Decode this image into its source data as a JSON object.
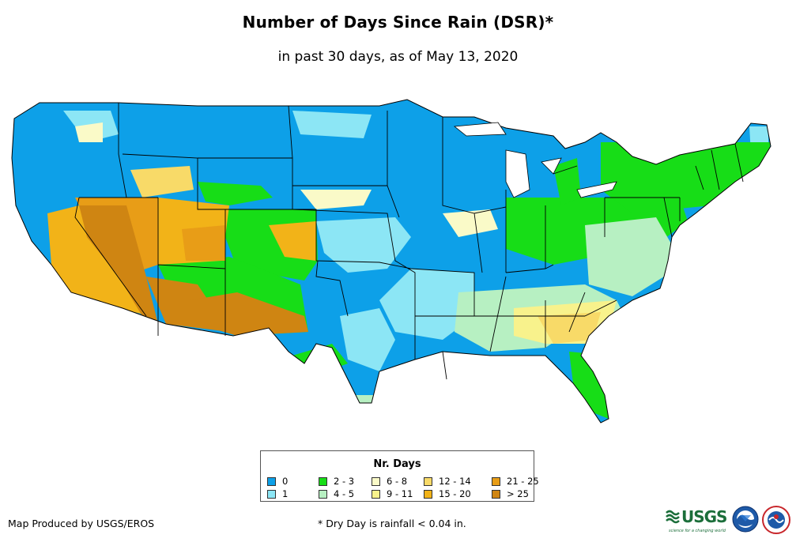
{
  "header": {
    "title": "Number of Days Since Rain (DSR)*",
    "subtitle": "in past 30 days, as of May 13, 2020"
  },
  "legend": {
    "title": "Nr. Days",
    "items": [
      {
        "label": "0",
        "color": "#0da0e8"
      },
      {
        "label": "1",
        "color": "#8ce6f5"
      },
      {
        "label": "2 - 3",
        "color": "#17dd17"
      },
      {
        "label": "4 - 5",
        "color": "#b7f0c2"
      },
      {
        "label": "6 - 8",
        "color": "#fafac8"
      },
      {
        "label": "9 - 11",
        "color": "#f8f28c"
      },
      {
        "label": "12 - 14",
        "color": "#f8da68"
      },
      {
        "label": "15 - 20",
        "color": "#f2b318"
      },
      {
        "label": "21 - 25",
        "color": "#e89d17"
      },
      {
        "label": "> 25",
        "color": "#cf8512"
      }
    ]
  },
  "footer": {
    "credit": "Map Produced by USGS/EROS",
    "footnote": "* Dry Day is rainfall < 0.04 in."
  },
  "logos": {
    "usgs_text": "USGS",
    "usgs_tagline": "science for a changing world",
    "usgs_icon": "usgs-wave-icon",
    "noaa_icon": "noaa-seal-icon",
    "nws_icon": "nws-seal-icon"
  },
  "colors": {
    "state_border": "#000000",
    "water": "#ffffff"
  }
}
